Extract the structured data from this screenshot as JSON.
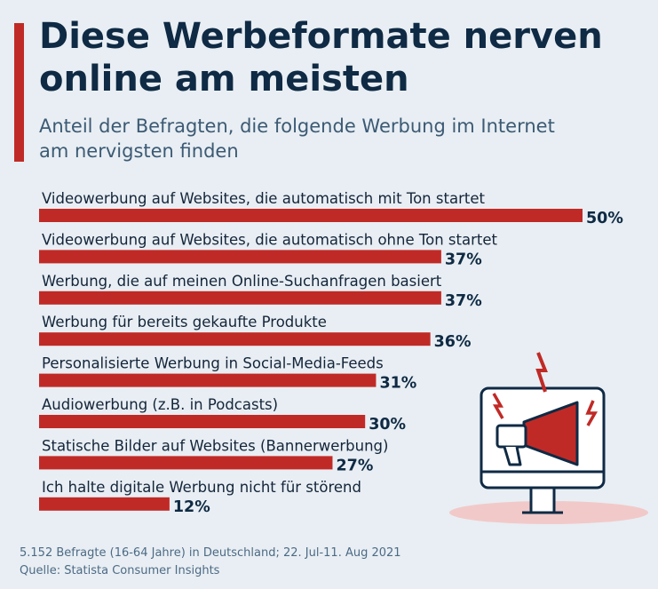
{
  "title": "Diese Werbeformate nerven online am meisten",
  "subtitle": "Anteil der Befragten, die folgende Werbung im Internet am nervigsten finden",
  "footer": {
    "note": "5.152 Befragte (16-64 Jahre) in Deutschland; 22. Jul-11. Aug 2021",
    "source": "Quelle: Statista Consumer Insights"
  },
  "colors": {
    "bar": "#c02a26",
    "text": "#0f2a44",
    "background": "#e8eef3"
  },
  "icon": "megaphone-monitor-icon",
  "chart_data": {
    "type": "bar",
    "orientation": "horizontal",
    "unit": "%",
    "categories": [
      "Videowerbung auf Websites, die automatisch mit Ton startet",
      "Videowerbung auf Websites, die automatisch ohne Ton startet",
      "Werbung, die auf meinen Online-Suchanfragen basiert",
      "Werbung für bereits gekaufte Produkte",
      "Personalisierte Werbung in Social-Media-Feeds",
      "Audiowerbung (z.B. in Podcasts)",
      "Statische Bilder auf Websites (Bannerwerbung)",
      "Ich halte digitale Werbung nicht für störend"
    ],
    "values": [
      50,
      37,
      37,
      36,
      31,
      30,
      27,
      12
    ],
    "value_labels": [
      "50%",
      "37%",
      "37%",
      "36%",
      "31%",
      "30%",
      "27%",
      "12%"
    ],
    "xlim": [
      0,
      50
    ],
    "grid": false,
    "legend": "none"
  }
}
